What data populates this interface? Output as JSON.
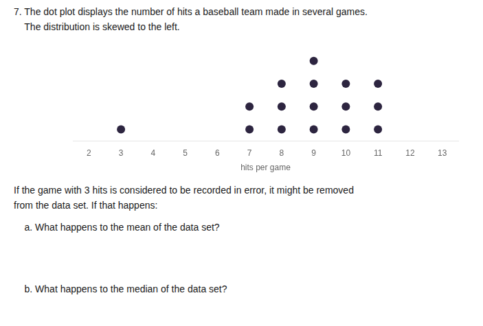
{
  "chart_data": {
    "type": "dot_plot",
    "title": "7. The dot plot displays the number of hits a baseball team made in several games.",
    "subtitle": "    The distribution is skewed to the left.",
    "annotations": [
      "If the game with 3 hits is considered to be recorded in error, it might be removed",
      "from the data set. If that happens:",
      "    a. What happens to the mean of the data set?",
      "    b. What happens to the median of the data set?"
    ],
    "x": [
      3,
      7,
      8,
      9,
      10,
      11
    ],
    "values": [
      1,
      2,
      3,
      4,
      3,
      3
    ],
    "color": "#2d2540",
    "marker": "circle",
    "xlabel": "hits per game",
    "xlim": [
      1.5,
      13.5
    ],
    "xticks": [
      2,
      3,
      4,
      5,
      6,
      7,
      8,
      9,
      10,
      11,
      12,
      13
    ],
    "grid": false,
    "tick_labels": "x"
  }
}
